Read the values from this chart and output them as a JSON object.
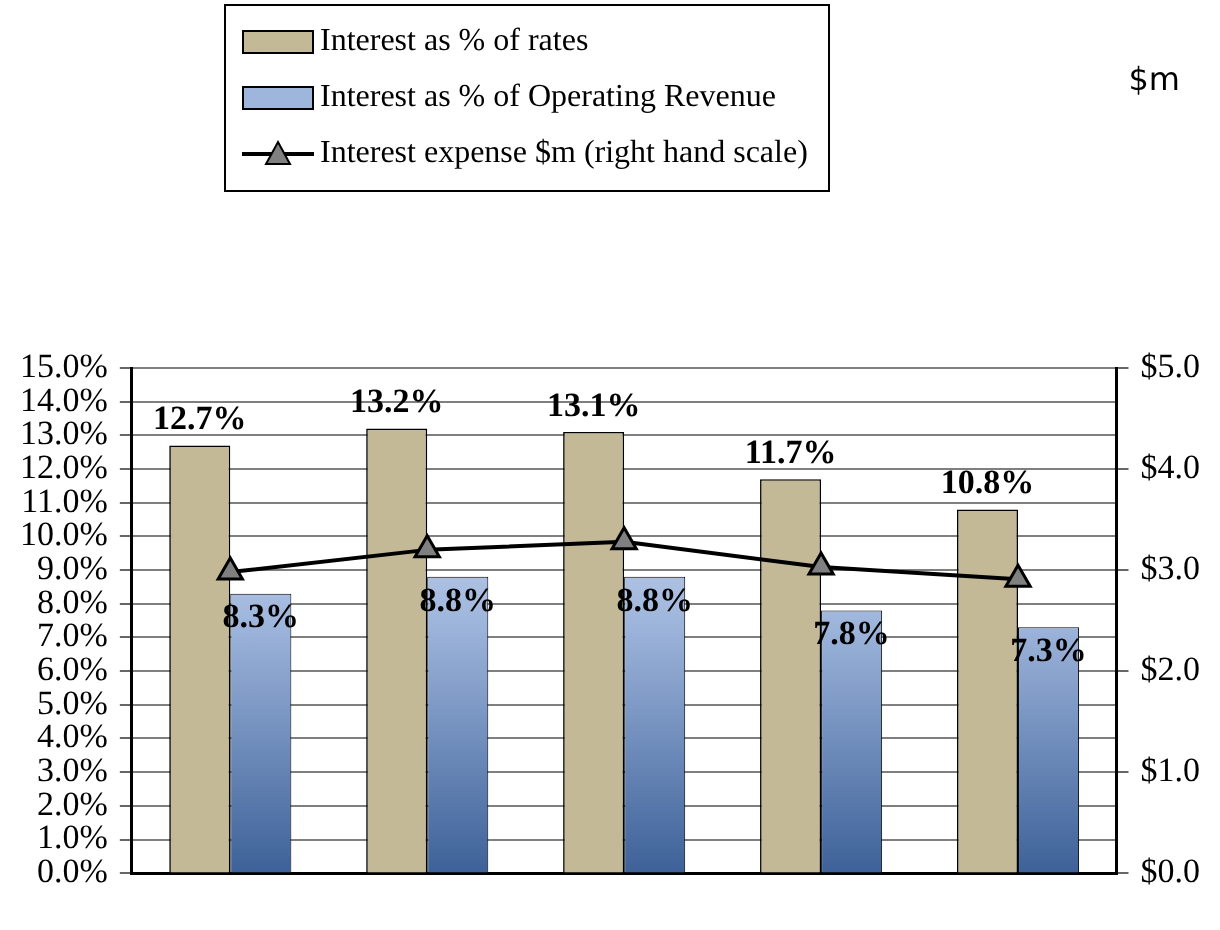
{
  "chart_data": {
    "type": "bar",
    "categories": [
      null,
      null,
      null,
      null,
      null
    ],
    "series": [
      {
        "name": "Interest as % of rates",
        "color": "#c4b996",
        "values": [
          12.7,
          13.2,
          13.1,
          11.7,
          10.8
        ],
        "value_labels": [
          "12.7%",
          "13.2%",
          "13.1%",
          "11.7%",
          "10.8%"
        ]
      },
      {
        "name": "Interest as % of Operating Revenue",
        "color": "#9fb6dc",
        "values": [
          8.3,
          8.8,
          8.8,
          7.8,
          7.3
        ],
        "value_labels": [
          "8.3%",
          "8.8%",
          "8.8%",
          "7.8%",
          "7.3%"
        ]
      },
      {
        "name": "Interest expense $m (right hand scale)",
        "type": "line",
        "axis": "y2",
        "color": "#000000",
        "marker": "triangle",
        "values": [
          2.98,
          3.2,
          3.28,
          3.03,
          2.91
        ]
      }
    ],
    "ylim": [
      0,
      15
    ],
    "yticks": [
      {
        "value": 0,
        "label": "0.0%"
      },
      {
        "value": 1,
        "label": "1.0%"
      },
      {
        "value": 2,
        "label": "2.0%"
      },
      {
        "value": 3,
        "label": "3.0%"
      },
      {
        "value": 4,
        "label": "4.0%"
      },
      {
        "value": 5,
        "label": "5.0%"
      },
      {
        "value": 6,
        "label": "6.0%"
      },
      {
        "value": 7,
        "label": "7.0%"
      },
      {
        "value": 8,
        "label": "8.0%"
      },
      {
        "value": 9,
        "label": "9.0%"
      },
      {
        "value": 10,
        "label": "10.0%"
      },
      {
        "value": 11,
        "label": "11.0%"
      },
      {
        "value": 12,
        "label": "12.0%"
      },
      {
        "value": 13,
        "label": "13.0%"
      },
      {
        "value": 14,
        "label": "14.0%"
      },
      {
        "value": 15,
        "label": "15.0%"
      }
    ],
    "y2lim": [
      0,
      5
    ],
    "y2ticks": [
      {
        "value": 0,
        "label": "$0.0"
      },
      {
        "value": 1,
        "label": "$1.0"
      },
      {
        "value": 2,
        "label": "$2.0"
      },
      {
        "value": 3,
        "label": "$3.0"
      },
      {
        "value": 4,
        "label": "$4.0"
      },
      {
        "value": 5,
        "label": "$5.0"
      }
    ],
    "annotations": [
      "$m"
    ],
    "grid": "y",
    "legend": "top"
  }
}
